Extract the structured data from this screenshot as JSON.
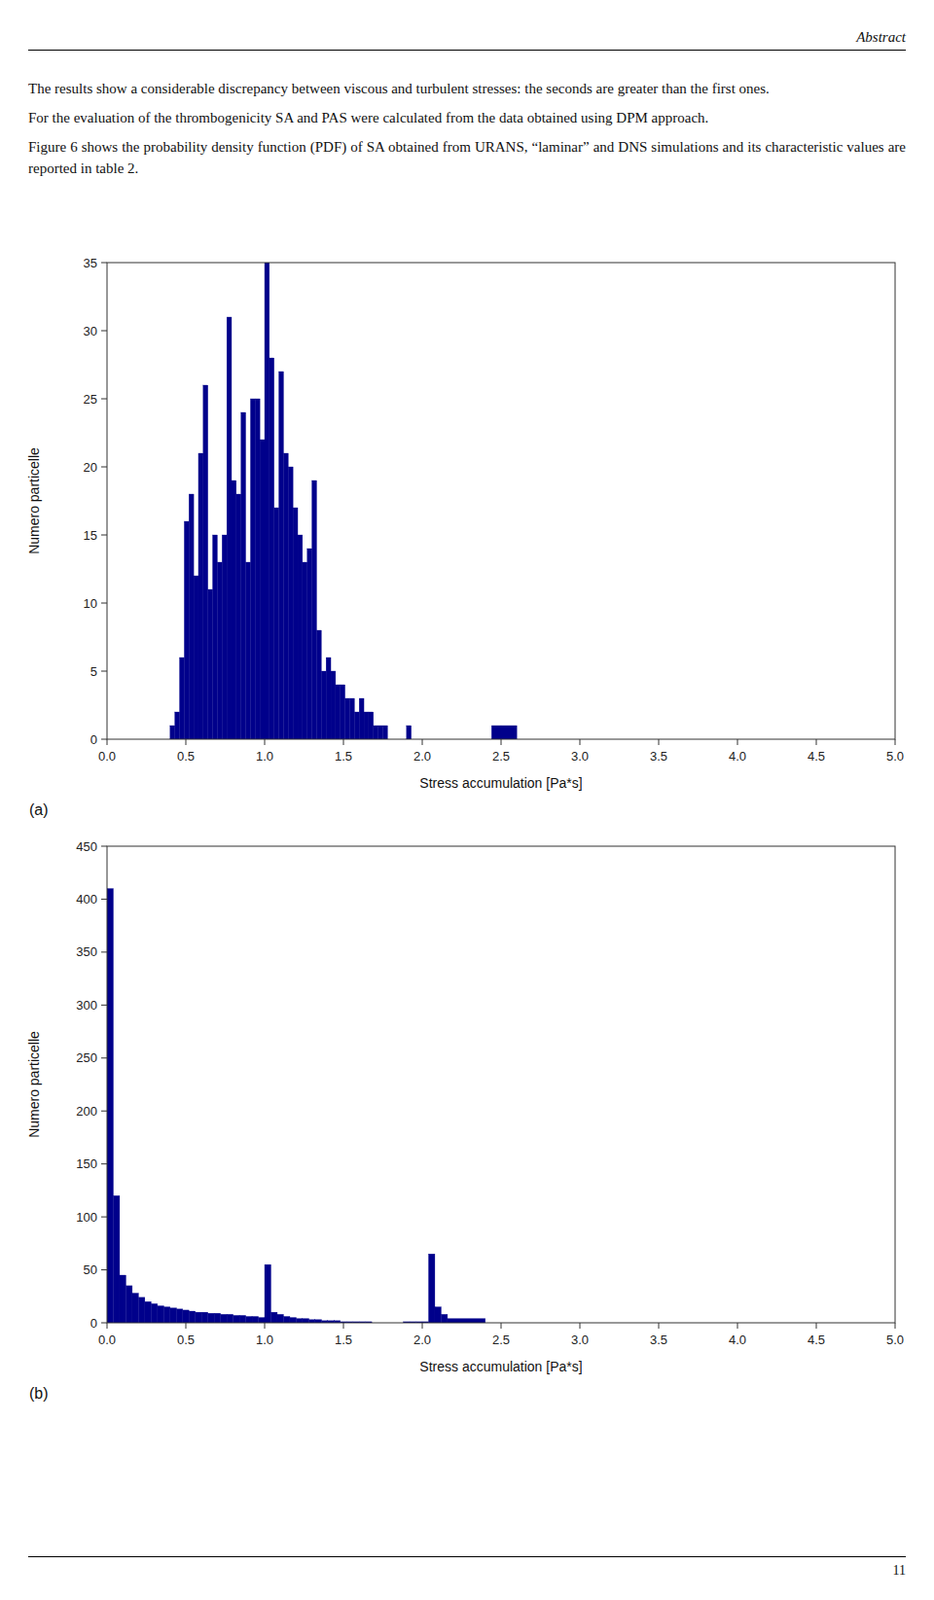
{
  "header": "Abstract",
  "paragraphs": [
    "The results show a considerable discrepancy between viscous and turbulent stresses: the seconds are greater than the first ones.",
    "For the evaluation of the thrombogenicity SA and PAS were calculated from the data obtained using DPM approach.",
    "Figure 6 shows the probability density function (PDF) of SA obtained from URANS, “laminar” and DNS simulations and its characteristic values are reported in table 2."
  ],
  "page_number": "11",
  "chart_data": [
    {
      "type": "histogram",
      "title": "(a)",
      "x_label": "Stress accumulation [Pa*s]",
      "y_label": "Numero particelle",
      "color": "#00008B",
      "grid": false,
      "xlim": [
        0,
        5
      ],
      "ylim": [
        0,
        35
      ],
      "xticks": [
        {
          "value": 0,
          "label": "0.0"
        },
        {
          "value": 0.5,
          "label": "0.5"
        },
        {
          "value": 1,
          "label": "1.0"
        },
        {
          "value": 1.5,
          "label": "1.5"
        },
        {
          "value": 2,
          "label": "2.0"
        },
        {
          "value": 2.5,
          "label": "2.5"
        },
        {
          "value": 3,
          "label": "3.0"
        },
        {
          "value": 3.5,
          "label": "3.5"
        },
        {
          "value": 4,
          "label": "4.0"
        },
        {
          "value": 4.5,
          "label": "4.5"
        },
        {
          "value": 5,
          "label": "5.0"
        }
      ],
      "yticks": [
        0,
        5,
        10,
        15,
        20,
        25,
        30,
        35
      ],
      "bins": [
        0.4,
        0.43,
        0.46,
        0.49,
        0.52,
        0.55,
        0.58,
        0.61,
        0.64,
        0.67,
        0.7,
        0.73,
        0.76,
        0.79,
        0.82,
        0.85,
        0.88,
        0.91,
        0.94,
        0.97,
        1.0,
        1.03,
        1.06,
        1.09,
        1.12,
        1.15,
        1.18,
        1.21,
        1.24,
        1.27,
        1.3,
        1.33,
        1.36,
        1.39,
        1.42,
        1.45,
        1.48,
        1.51,
        1.54,
        1.57,
        1.6,
        1.63,
        1.66,
        1.69,
        1.72,
        1.75,
        1.78,
        1.81,
        1.84,
        1.87,
        1.9,
        1.93,
        1.96,
        1.99,
        2.02,
        2.05,
        2.08,
        2.11,
        2.14,
        2.17,
        2.2,
        2.23,
        2.26,
        2.29,
        2.32,
        2.35,
        2.38,
        2.41,
        2.44,
        2.5,
        2.6,
        2.7,
        2.8,
        3.0,
        3.2,
        5.0
      ],
      "values": [
        1,
        2,
        6,
        16,
        18,
        12,
        21,
        26,
        11,
        15,
        13,
        15,
        31,
        19,
        18,
        24,
        13,
        25,
        25,
        22,
        35,
        28,
        17,
        27,
        21,
        20,
        17,
        15,
        13,
        14,
        19,
        8,
        5,
        6,
        5,
        4,
        4,
        3,
        3,
        2,
        3,
        2,
        2,
        1,
        1,
        1,
        0,
        0,
        0,
        0,
        1,
        0,
        0,
        0,
        0,
        0,
        0,
        0,
        0,
        0,
        0,
        0,
        0,
        0,
        0,
        0,
        0,
        0,
        1,
        1,
        0,
        0,
        0,
        0,
        0
      ]
    },
    {
      "type": "histogram",
      "title": "(b)",
      "x_label": "Stress accumulation [Pa*s]",
      "y_label": "Numero particelle",
      "color": "#00008B",
      "grid": false,
      "xlim": [
        0,
        5
      ],
      "ylim": [
        0,
        450
      ],
      "xticks": [
        {
          "value": 0,
          "label": "0.0"
        },
        {
          "value": 0.5,
          "label": "0.5"
        },
        {
          "value": 1,
          "label": "1.0"
        },
        {
          "value": 1.5,
          "label": "1.5"
        },
        {
          "value": 2,
          "label": "2.0"
        },
        {
          "value": 2.5,
          "label": "2.5"
        },
        {
          "value": 3,
          "label": "3.0"
        },
        {
          "value": 3.5,
          "label": "3.5"
        },
        {
          "value": 4,
          "label": "4.0"
        },
        {
          "value": 4.5,
          "label": "4.5"
        },
        {
          "value": 5,
          "label": "5.0"
        }
      ],
      "yticks": [
        0,
        50,
        100,
        150,
        200,
        250,
        300,
        350,
        400,
        450
      ],
      "bins": [
        0.0,
        0.04,
        0.08,
        0.12,
        0.16,
        0.2,
        0.24,
        0.28,
        0.32,
        0.36,
        0.4,
        0.44,
        0.48,
        0.52,
        0.56,
        0.6,
        0.64,
        0.68,
        0.72,
        0.76,
        0.8,
        0.84,
        0.88,
        0.92,
        0.96,
        1.0,
        1.04,
        1.08,
        1.12,
        1.16,
        1.2,
        1.24,
        1.28,
        1.32,
        1.36,
        1.4,
        1.44,
        1.48,
        1.52,
        1.56,
        1.6,
        1.64,
        1.68,
        1.72,
        1.76,
        1.8,
        1.84,
        1.88,
        1.92,
        1.96,
        2.0,
        2.04,
        2.08,
        2.12,
        2.16,
        2.4,
        2.5,
        2.6,
        5.0
      ],
      "values": [
        410,
        120,
        45,
        35,
        28,
        24,
        20,
        18,
        16,
        15,
        14,
        13,
        12,
        11,
        10,
        10,
        9,
        9,
        8,
        8,
        7,
        7,
        6,
        6,
        5,
        55,
        10,
        8,
        6,
        5,
        4,
        4,
        3,
        3,
        2,
        2,
        2,
        1,
        1,
        1,
        1,
        1,
        0,
        0,
        0,
        0,
        0,
        1,
        1,
        1,
        1,
        65,
        15,
        8,
        4,
        0,
        0,
        0
      ]
    }
  ]
}
